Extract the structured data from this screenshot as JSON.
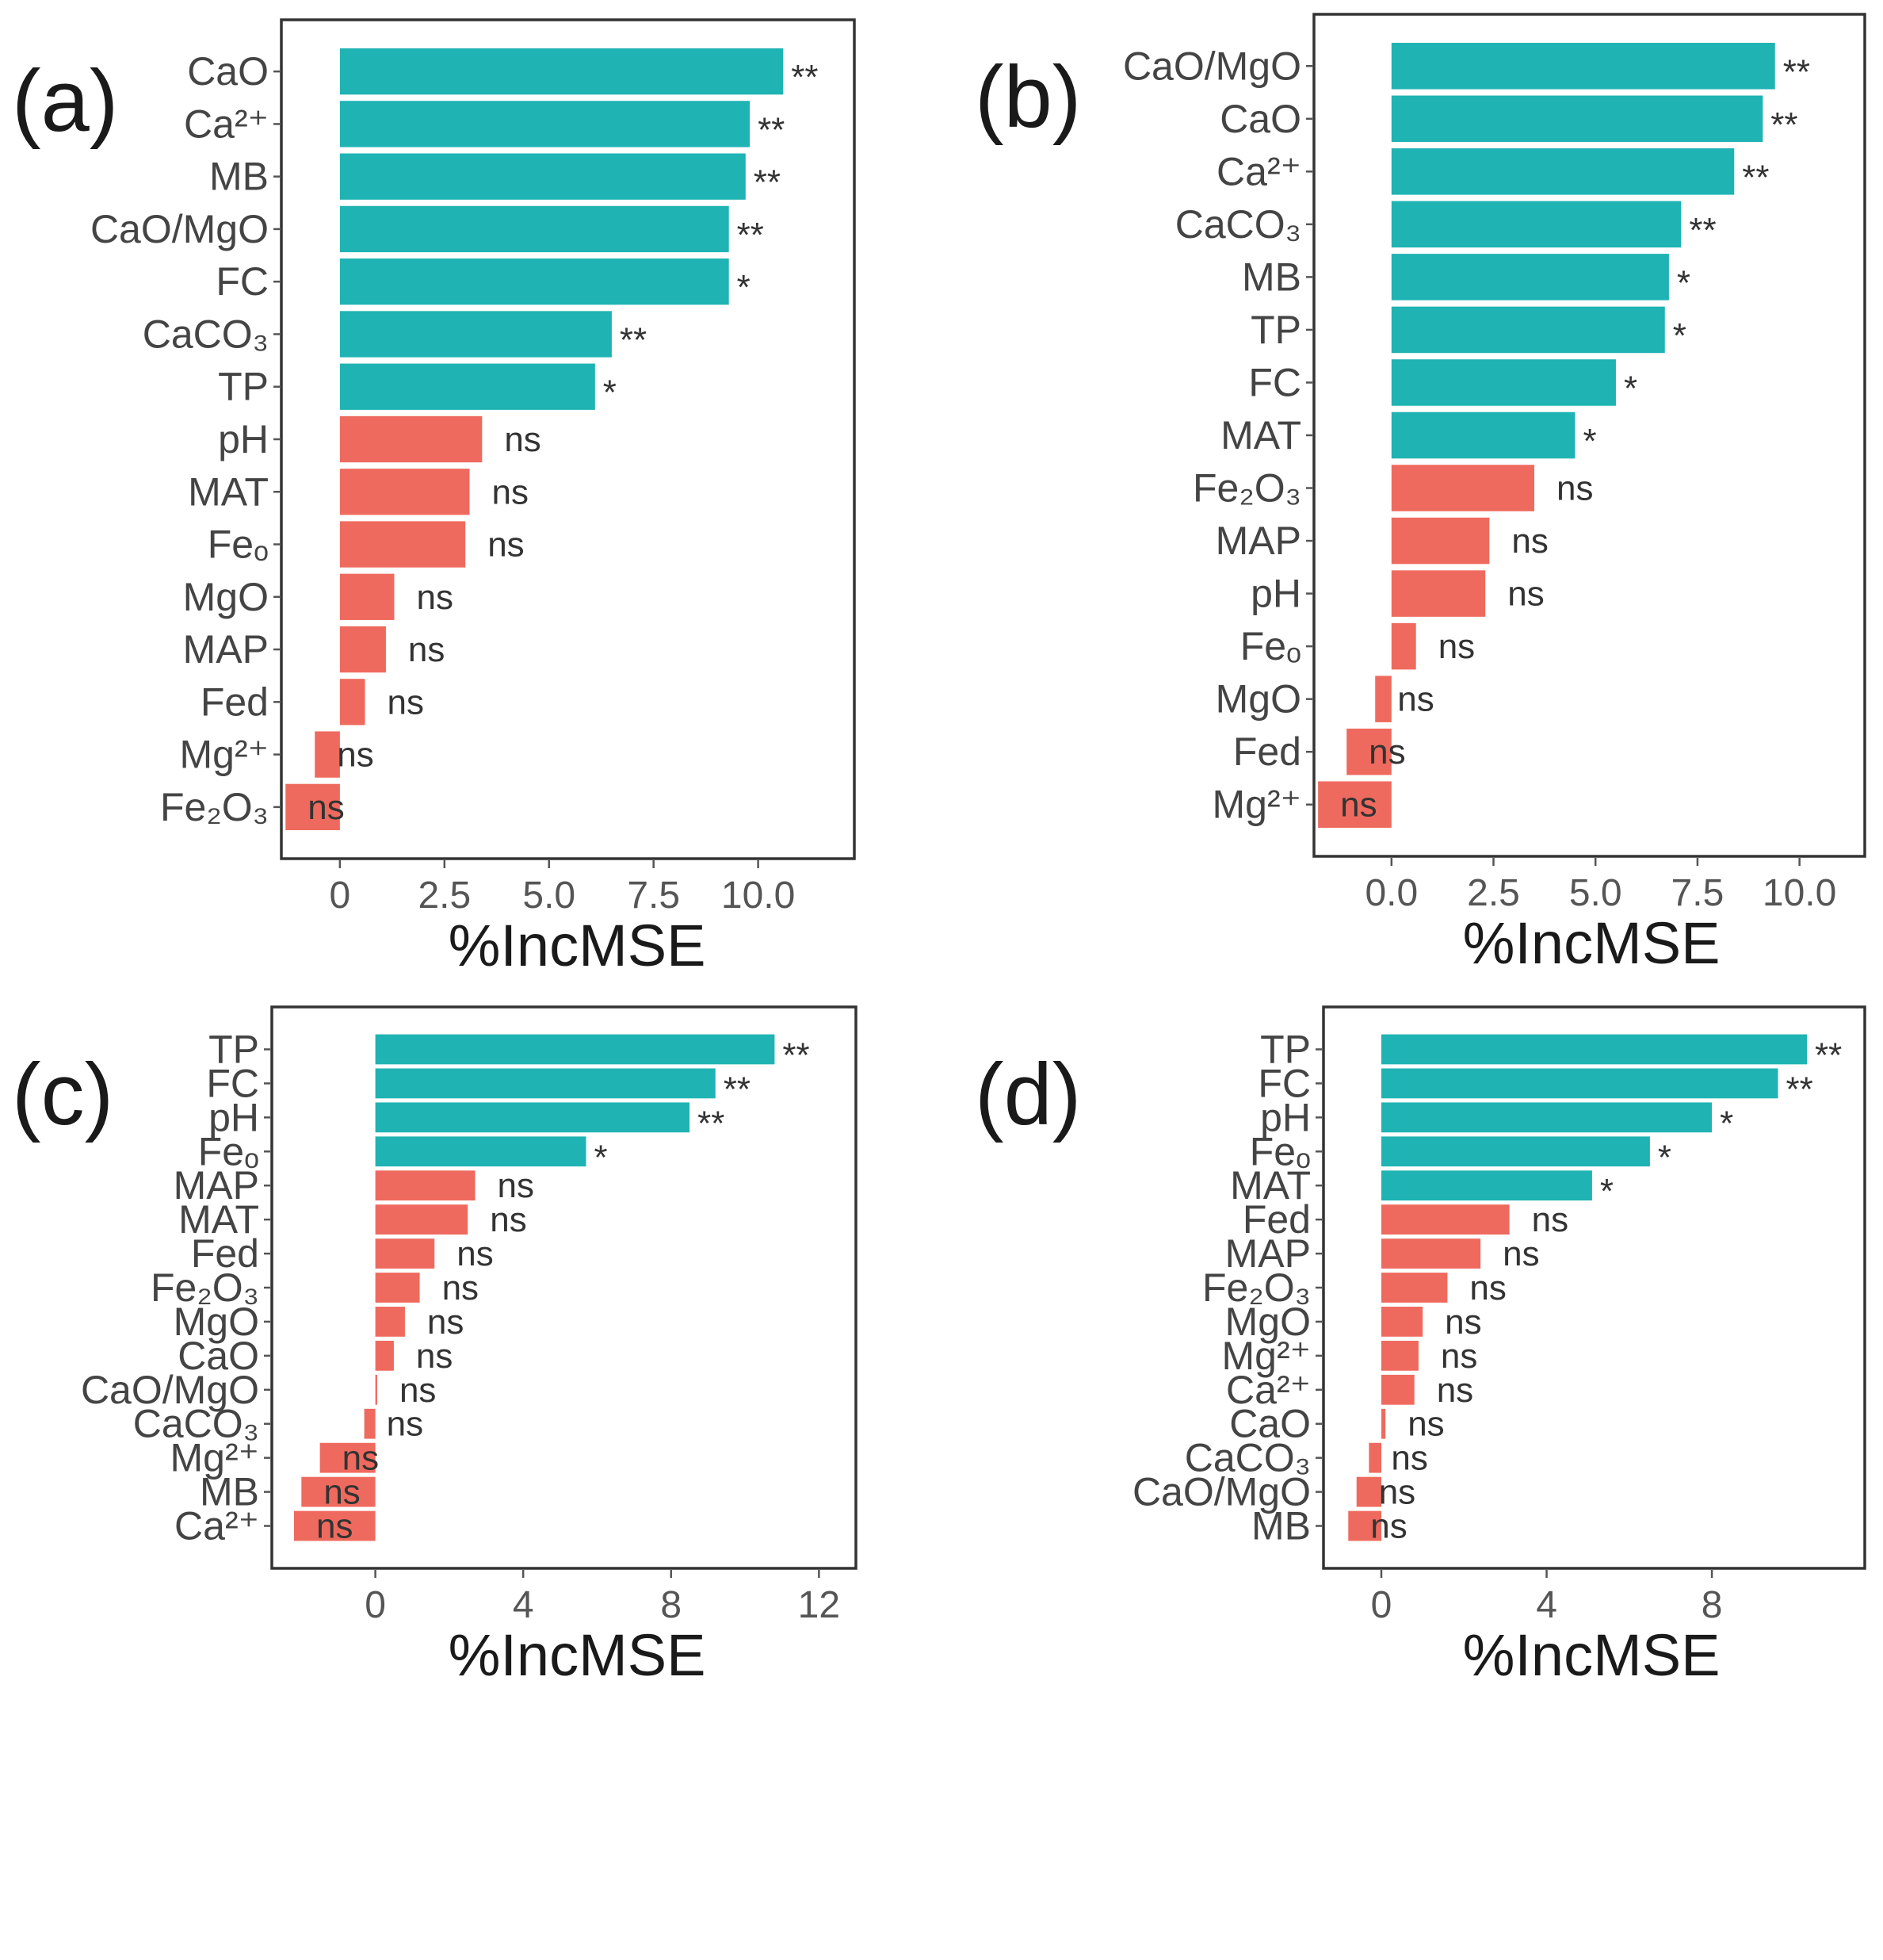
{
  "colors": {
    "significant": "#1fb3b3",
    "not_significant": "#ef6a5e"
  },
  "chart_data": [
    {
      "type": "bar",
      "orientation": "horizontal",
      "panel_label": "(a)",
      "xlabel": "%IncMSE",
      "ylabel": "",
      "xlim": [
        -1.4,
        12.3
      ],
      "xticks": [
        0,
        2.5,
        5,
        7.5,
        10
      ],
      "xtick_labels": [
        "0",
        "2.5",
        "5.0",
        "7.5",
        "10.0"
      ],
      "categories": [
        "CaO",
        "Ca²⁺",
        "MB",
        "CaO/MgO",
        "FC",
        "CaCO₃",
        "TP",
        "pH",
        "MAT",
        "Feₒ",
        "MgO",
        "MAP",
        "Fed",
        "Mg²⁺",
        "Fe₂O₃"
      ],
      "values": [
        10.6,
        9.8,
        9.7,
        9.3,
        9.3,
        6.5,
        6.1,
        3.4,
        3.1,
        3.0,
        1.3,
        1.1,
        0.6,
        -0.6,
        -1.3
      ],
      "significance": [
        "**",
        "**",
        "**",
        "**",
        "*",
        "**",
        "*",
        "ns",
        "ns",
        "ns",
        "ns",
        "ns",
        "ns",
        "ns",
        "ns"
      ]
    },
    {
      "type": "bar",
      "orientation": "horizontal",
      "panel_label": "(b)",
      "xlabel": "%IncMSE",
      "ylabel": "",
      "xlim": [
        -1.9,
        11.6
      ],
      "xticks": [
        0,
        2.5,
        5,
        7.5,
        10
      ],
      "xtick_labels": [
        "0.0",
        "2.5",
        "5.0",
        "7.5",
        "10.0"
      ],
      "categories": [
        "CaO/MgO",
        "CaO",
        "Ca²⁺",
        "CaCO₃",
        "MB",
        "TP",
        "FC",
        "MAT",
        "Fe₂O₃",
        "MAP",
        "pH",
        "Feₒ",
        "MgO",
        "Fed",
        "Mg²⁺"
      ],
      "values": [
        9.4,
        9.1,
        8.4,
        7.1,
        6.8,
        6.7,
        5.5,
        4.5,
        3.5,
        2.4,
        2.3,
        0.6,
        -0.4,
        -1.1,
        -1.8
      ],
      "significance": [
        "**",
        "**",
        "**",
        "**",
        "*",
        "*",
        "*",
        "*",
        "ns",
        "ns",
        "ns",
        "ns",
        "ns",
        "ns",
        "ns"
      ]
    },
    {
      "type": "bar",
      "orientation": "horizontal",
      "panel_label": "(c)",
      "xlabel": "%IncMSE",
      "ylabel": "",
      "xlim": [
        -2.8,
        13.0
      ],
      "xticks": [
        0,
        4,
        8,
        12
      ],
      "xtick_labels": [
        "0",
        "4",
        "8",
        "12"
      ],
      "categories": [
        "TP",
        "FC",
        "pH",
        "Feₒ",
        "MAP",
        "MAT",
        "Fed",
        "Fe₂O₃",
        "MgO",
        "CaO",
        "CaO/MgO",
        "CaCO₃",
        "Mg²⁺",
        "MB",
        "Ca²⁺"
      ],
      "values": [
        10.8,
        9.2,
        8.5,
        5.7,
        2.7,
        2.5,
        1.6,
        1.2,
        0.8,
        0.5,
        0.05,
        -0.3,
        -1.5,
        -2.0,
        -2.2
      ],
      "significance": [
        "**",
        "**",
        "**",
        "*",
        "ns",
        "ns",
        "ns",
        "ns",
        "ns",
        "ns",
        "ns",
        "ns",
        "ns",
        "ns",
        "ns"
      ]
    },
    {
      "type": "bar",
      "orientation": "horizontal",
      "panel_label": "(d)",
      "xlabel": "%IncMSE",
      "ylabel": "",
      "xlim": [
        -1.4,
        11.7
      ],
      "xticks": [
        0,
        4,
        8
      ],
      "xtick_labels": [
        "0",
        "4",
        "8"
      ],
      "categories": [
        "TP",
        "FC",
        "pH",
        "Feₒ",
        "MAT",
        "Fed",
        "MAP",
        "Fe₂O₃",
        "MgO",
        "Mg²⁺",
        "Ca²⁺",
        "CaO",
        "CaCO₃",
        "CaO/MgO",
        "MB"
      ],
      "values": [
        10.3,
        9.6,
        8.0,
        6.5,
        5.1,
        3.1,
        2.4,
        1.6,
        1.0,
        0.9,
        0.8,
        0.1,
        -0.3,
        -0.6,
        -0.8
      ],
      "significance": [
        "**",
        "**",
        "*",
        "*",
        "*",
        "ns",
        "ns",
        "ns",
        "ns",
        "ns",
        "ns",
        "ns",
        "ns",
        "ns",
        "ns"
      ]
    }
  ]
}
